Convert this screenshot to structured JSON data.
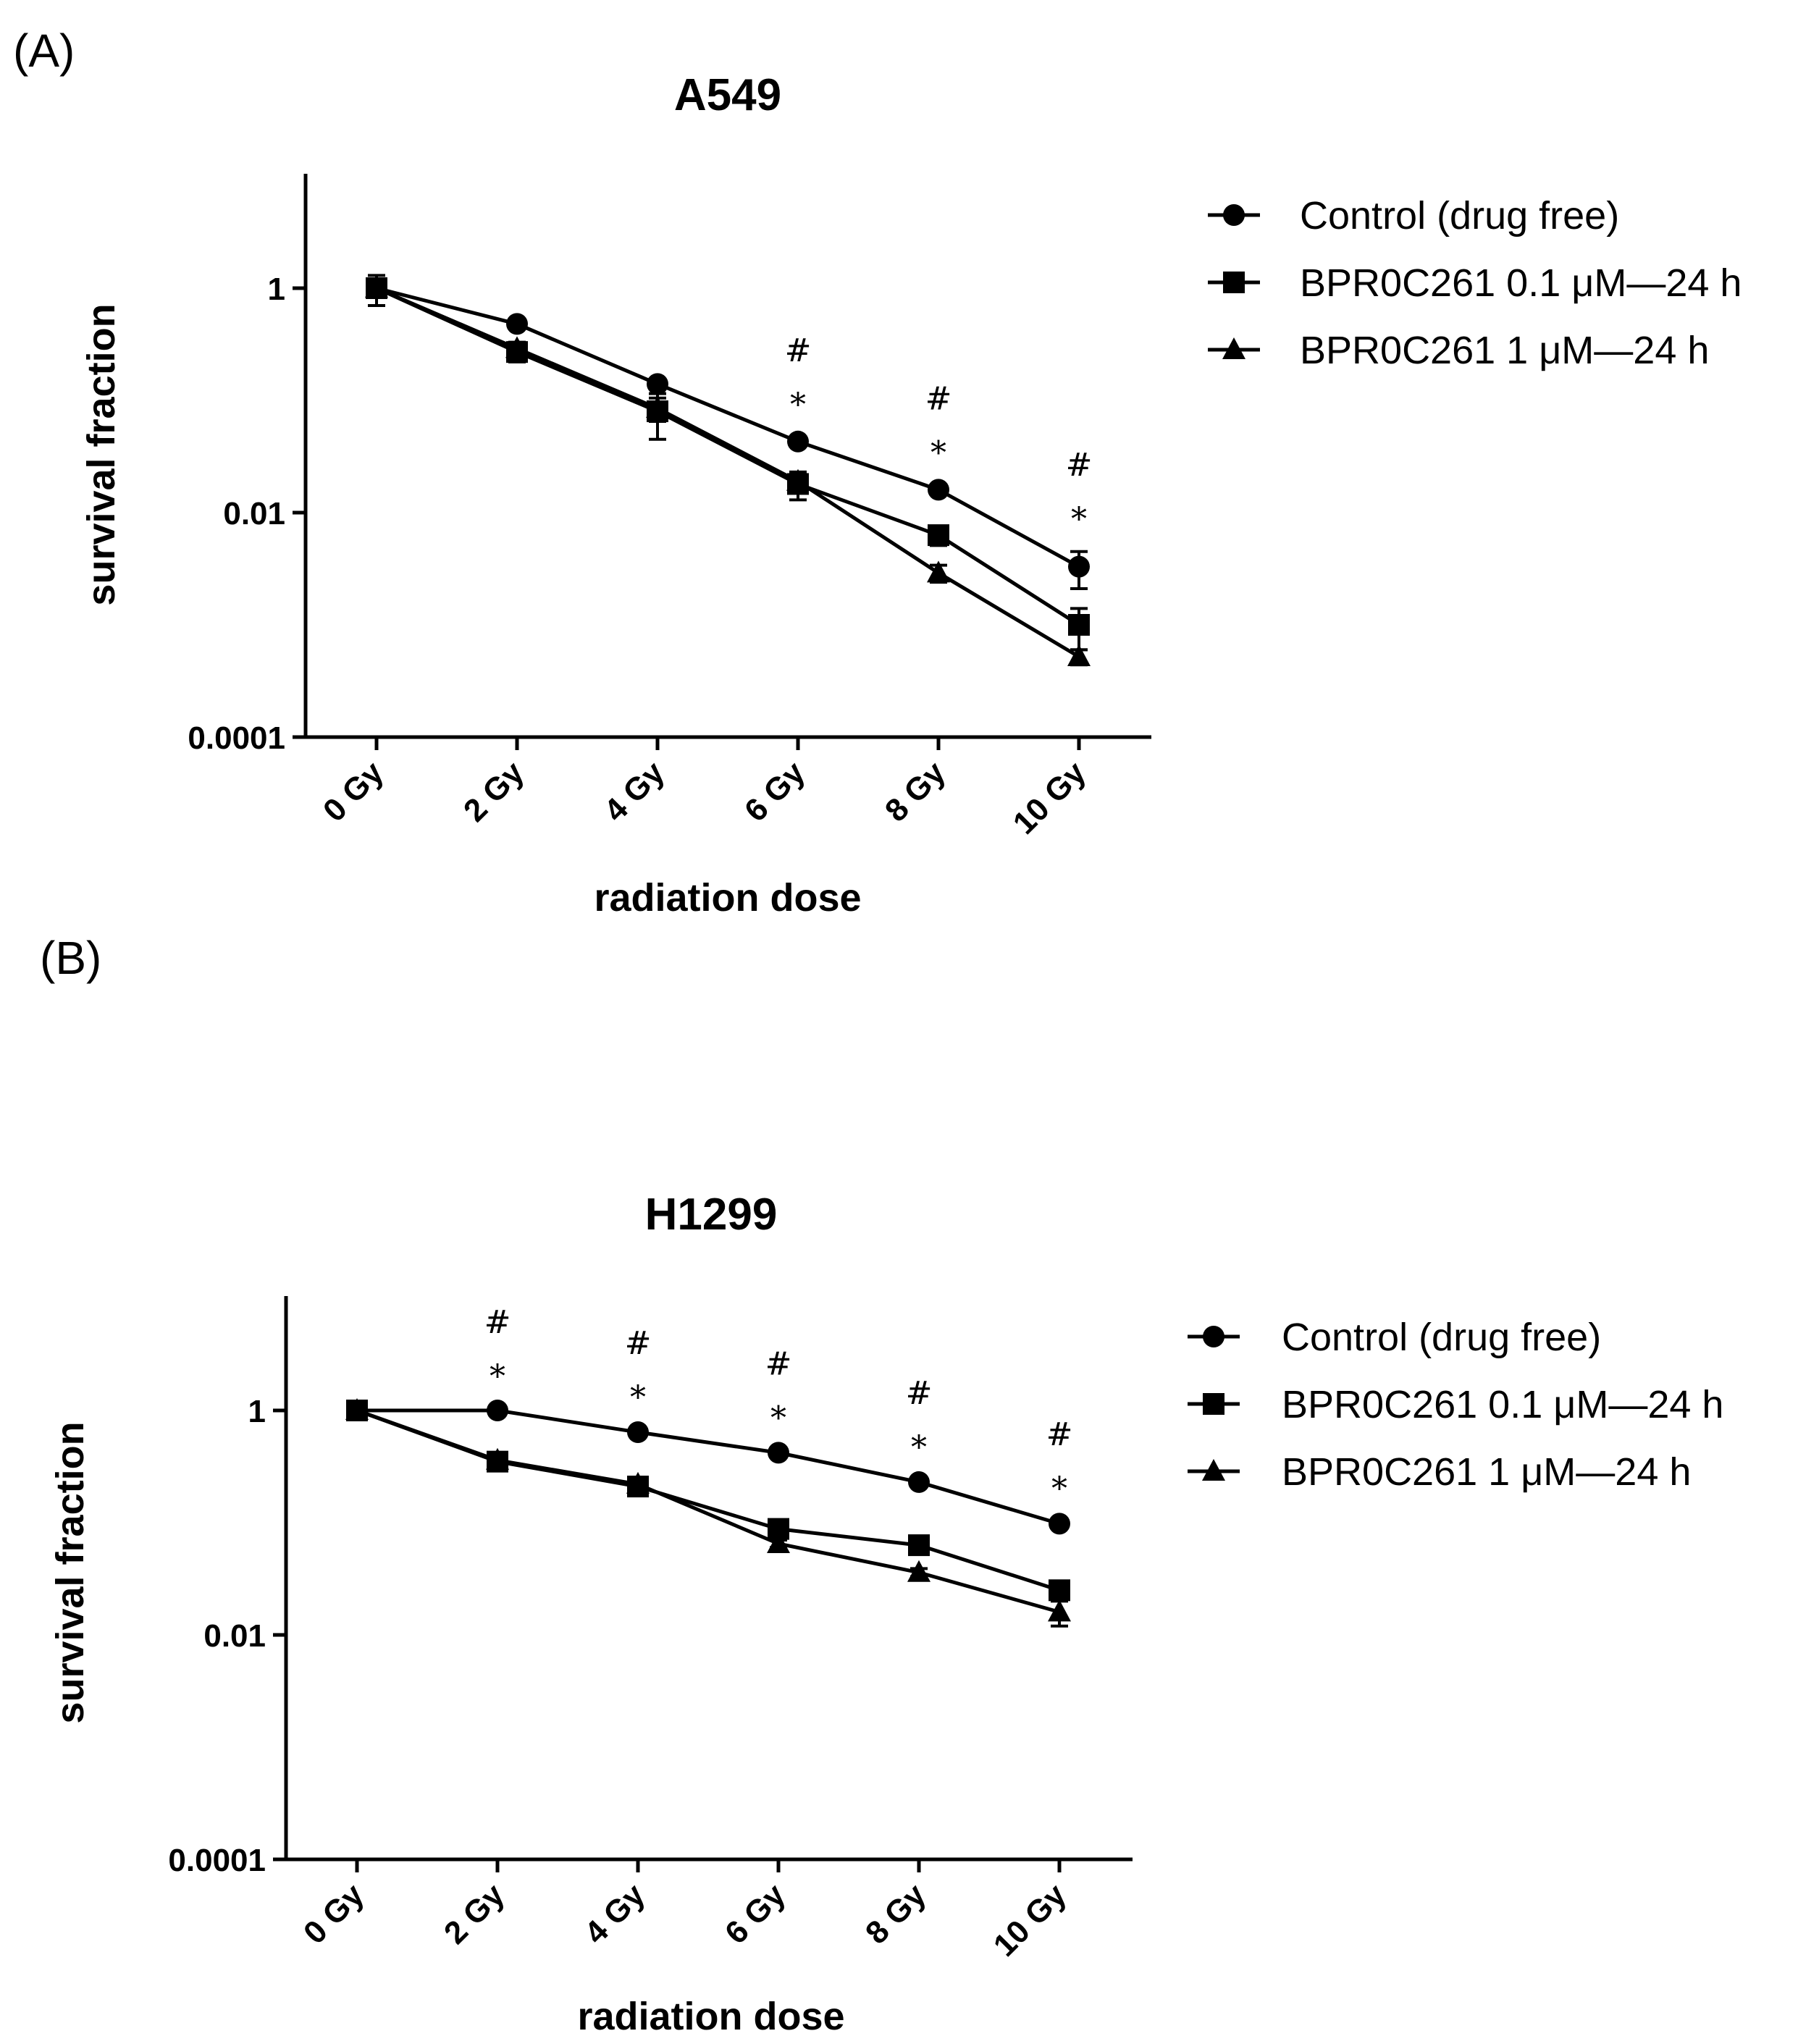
{
  "chart_data": [
    {
      "type": "line",
      "panel_label": "(A)",
      "title": "A549",
      "xlabel": "radiation dose",
      "ylabel": "survival fraction",
      "yscale": "log",
      "ylim": [
        0.0001,
        10
      ],
      "yticks": [
        {
          "value": 1,
          "label": "1"
        },
        {
          "value": 0.01,
          "label": "0.01"
        },
        {
          "value": 0.0001,
          "label": "0.0001"
        }
      ],
      "categories": [
        "0 Gy",
        "2 Gy",
        "4 Gy",
        "6 Gy",
        "8 Gy",
        "10 Gy"
      ],
      "series": [
        {
          "name": "Control (drug free)",
          "marker": "circle",
          "values": [
            1.0,
            0.48,
            0.14,
            0.043,
            0.016,
            0.0033
          ],
          "err": [
            0.05,
            0.03,
            0.01,
            0.004,
            0.0015,
            0.0012
          ]
        },
        {
          "name": "BPR0C261 0.1 μM—24 h",
          "marker": "square",
          "values": [
            1.0,
            0.27,
            0.08,
            0.018,
            0.0063,
            0.001
          ],
          "err": [
            0.3,
            0.05,
            0.035,
            0.005,
            0.0012,
            0.0004
          ]
        },
        {
          "name": "BPR0C261 1 μM—24 h",
          "marker": "triangle",
          "values": [
            1.0,
            0.29,
            0.085,
            0.019,
            0.0029,
            0.00052
          ],
          "err": [
            0.1,
            0.04,
            0.02,
            0.003,
            0.0005,
            8e-05
          ]
        }
      ],
      "annotations": [
        {
          "x": "6 Gy",
          "star": "*",
          "hash": "#"
        },
        {
          "x": "8 Gy",
          "star": "*",
          "hash": "#"
        },
        {
          "x": "10 Gy",
          "star": "*",
          "hash": "#"
        }
      ],
      "legend_position": "right"
    },
    {
      "type": "line",
      "panel_label": "(B)",
      "title": "H1299",
      "xlabel": "radiation dose",
      "ylabel": "survival fraction",
      "yscale": "log",
      "ylim": [
        0.0001,
        10
      ],
      "yticks": [
        {
          "value": 1,
          "label": "1"
        },
        {
          "value": 0.01,
          "label": "0.01"
        },
        {
          "value": 0.0001,
          "label": "0.0001"
        }
      ],
      "categories": [
        "0 Gy",
        "2 Gy",
        "4 Gy",
        "6 Gy",
        "8 Gy",
        "10 Gy"
      ],
      "series": [
        {
          "name": "Control (drug free)",
          "marker": "circle",
          "values": [
            1.0,
            1.0,
            0.64,
            0.42,
            0.23,
            0.098
          ],
          "err": [
            0.02,
            0.03,
            0.03,
            0.02,
            0.01,
            0.005
          ]
        },
        {
          "name": "BPR0C261 0.1 μM—24 h",
          "marker": "square",
          "values": [
            1.0,
            0.35,
            0.21,
            0.088,
            0.063,
            0.025
          ],
          "err": [
            0.02,
            0.02,
            0.015,
            0.01,
            0.005,
            0.004
          ]
        },
        {
          "name": "BPR0C261 1 μM—24 h",
          "marker": "triangle",
          "values": [
            1.0,
            0.36,
            0.22,
            0.065,
            0.036,
            0.016
          ],
          "err": [
            0.02,
            0.02,
            0.015,
            0.005,
            0.003,
            0.004
          ]
        }
      ],
      "annotations": [
        {
          "x": "2 Gy",
          "star": "*",
          "hash": "#"
        },
        {
          "x": "4 Gy",
          "star": "*",
          "hash": "#"
        },
        {
          "x": "6 Gy",
          "star": "*",
          "hash": "#"
        },
        {
          "x": "8 Gy",
          "star": "*",
          "hash": "#"
        },
        {
          "x": "10 Gy",
          "star": "*",
          "hash": "#"
        }
      ],
      "legend_position": "right"
    }
  ]
}
